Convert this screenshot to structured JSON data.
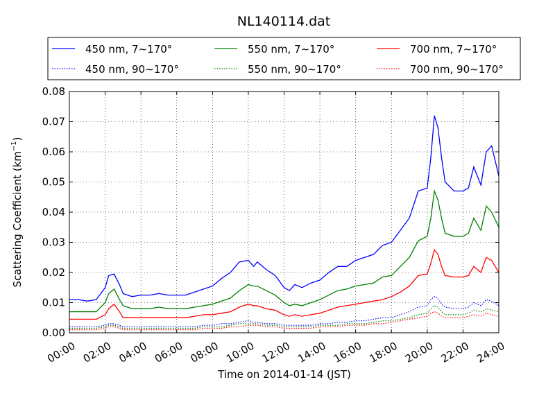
{
  "chart_data": {
    "type": "line",
    "title": "NL140114.dat",
    "xlabel": "Time on 2014-01-14 (JST)",
    "ylabel_main": "Scattering Coefficient (km",
    "ylabel_sup": "−1",
    "ylabel_tail": ")",
    "x_unit": "hours",
    "xlim": [
      0,
      24
    ],
    "ylim": [
      0,
      0.08
    ],
    "x_ticks": [
      0,
      2,
      4,
      6,
      8,
      10,
      12,
      14,
      16,
      18,
      20,
      22,
      24
    ],
    "x_tick_labels": [
      "00:00",
      "02:00",
      "04:00",
      "06:00",
      "08:00",
      "10:00",
      "12:00",
      "14:00",
      "16:00",
      "18:00",
      "20:00",
      "22:00",
      "24:00"
    ],
    "y_ticks": [
      0,
      0.01,
      0.02,
      0.03,
      0.04,
      0.05,
      0.06,
      0.07,
      0.08
    ],
    "y_tick_labels": [
      "0.00",
      "0.01",
      "0.02",
      "0.03",
      "0.04",
      "0.05",
      "0.06",
      "0.07",
      "0.08"
    ],
    "grid": true,
    "legend_position": "top, above plot",
    "x": [
      0,
      0.5,
      1,
      1.5,
      2,
      2.2,
      2.5,
      2.8,
      3,
      3.5,
      4,
      4.5,
      5,
      5.5,
      6,
      6.5,
      7,
      7.5,
      8,
      8.5,
      9,
      9.5,
      10,
      10.3,
      10.5,
      11,
      11.5,
      12,
      12.3,
      12.6,
      13,
      13.5,
      14,
      14.5,
      15,
      15.5,
      16,
      16.5,
      17,
      17.5,
      18,
      18.5,
      19,
      19.5,
      20,
      20.2,
      20.4,
      20.6,
      20.8,
      21,
      21.5,
      22,
      22.3,
      22.6,
      23,
      23.3,
      23.6,
      24
    ],
    "series": [
      {
        "name": "450 nm, 7∼170°",
        "color": "#0000ff",
        "style": "solid",
        "values": [
          0.011,
          0.011,
          0.0105,
          0.011,
          0.015,
          0.019,
          0.0195,
          0.016,
          0.013,
          0.012,
          0.0125,
          0.0125,
          0.013,
          0.0125,
          0.0125,
          0.0125,
          0.0135,
          0.0145,
          0.0155,
          0.018,
          0.02,
          0.0235,
          0.024,
          0.022,
          0.0235,
          0.021,
          0.019,
          0.015,
          0.014,
          0.016,
          0.015,
          0.0165,
          0.0175,
          0.02,
          0.022,
          0.022,
          0.024,
          0.025,
          0.026,
          0.029,
          0.03,
          0.034,
          0.038,
          0.047,
          0.048,
          0.058,
          0.072,
          0.068,
          0.058,
          0.05,
          0.047,
          0.047,
          0.048,
          0.055,
          0.049,
          0.06,
          0.062,
          0.052
        ]
      },
      {
        "name": "450 nm, 90∼170°",
        "color": "#0000ff",
        "style": "dotted",
        "values": [
          0.002,
          0.002,
          0.002,
          0.002,
          0.0025,
          0.003,
          0.003,
          0.0025,
          0.002,
          0.002,
          0.002,
          0.002,
          0.002,
          0.002,
          0.002,
          0.002,
          0.002,
          0.0025,
          0.0025,
          0.003,
          0.003,
          0.0035,
          0.004,
          0.0035,
          0.0035,
          0.003,
          0.003,
          0.0025,
          0.0025,
          0.0025,
          0.0025,
          0.0025,
          0.003,
          0.003,
          0.0035,
          0.0035,
          0.004,
          0.004,
          0.0045,
          0.005,
          0.005,
          0.006,
          0.007,
          0.0085,
          0.009,
          0.011,
          0.012,
          0.0115,
          0.0095,
          0.0085,
          0.008,
          0.008,
          0.0085,
          0.01,
          0.009,
          0.011,
          0.0105,
          0.009
        ]
      },
      {
        "name": "550 nm, 7∼170°",
        "color": "#008000",
        "style": "solid",
        "values": [
          0.007,
          0.007,
          0.007,
          0.007,
          0.01,
          0.013,
          0.0145,
          0.011,
          0.009,
          0.008,
          0.008,
          0.008,
          0.0085,
          0.008,
          0.008,
          0.008,
          0.0085,
          0.009,
          0.0095,
          0.0105,
          0.0115,
          0.014,
          0.016,
          0.0155,
          0.0155,
          0.014,
          0.0125,
          0.01,
          0.009,
          0.0095,
          0.009,
          0.01,
          0.011,
          0.0125,
          0.014,
          0.0145,
          0.0155,
          0.016,
          0.0165,
          0.0185,
          0.019,
          0.022,
          0.025,
          0.0305,
          0.032,
          0.038,
          0.047,
          0.044,
          0.038,
          0.033,
          0.032,
          0.032,
          0.033,
          0.038,
          0.034,
          0.042,
          0.04,
          0.035
        ]
      },
      {
        "name": "550 nm, 90∼170°",
        "color": "#008000",
        "style": "dotted",
        "values": [
          0.0015,
          0.0015,
          0.0015,
          0.0015,
          0.002,
          0.0025,
          0.0025,
          0.002,
          0.0015,
          0.0015,
          0.0015,
          0.0015,
          0.0015,
          0.0015,
          0.0015,
          0.0015,
          0.0015,
          0.002,
          0.002,
          0.002,
          0.0025,
          0.003,
          0.003,
          0.003,
          0.003,
          0.0025,
          0.0025,
          0.002,
          0.002,
          0.002,
          0.002,
          0.002,
          0.0025,
          0.0025,
          0.0025,
          0.003,
          0.003,
          0.003,
          0.0035,
          0.004,
          0.004,
          0.0045,
          0.005,
          0.006,
          0.0065,
          0.008,
          0.009,
          0.0085,
          0.007,
          0.006,
          0.006,
          0.006,
          0.0065,
          0.0075,
          0.007,
          0.008,
          0.0075,
          0.007
        ]
      },
      {
        "name": "700 nm, 7∼170°",
        "color": "#ff0000",
        "style": "solid",
        "values": [
          0.0045,
          0.0045,
          0.0045,
          0.0045,
          0.006,
          0.008,
          0.0095,
          0.007,
          0.005,
          0.005,
          0.005,
          0.005,
          0.005,
          0.005,
          0.005,
          0.005,
          0.0055,
          0.006,
          0.006,
          0.0065,
          0.007,
          0.0085,
          0.0095,
          0.009,
          0.009,
          0.008,
          0.0075,
          0.006,
          0.0055,
          0.006,
          0.0055,
          0.006,
          0.0065,
          0.0075,
          0.0085,
          0.009,
          0.0095,
          0.01,
          0.0105,
          0.011,
          0.012,
          0.0135,
          0.0155,
          0.019,
          0.0195,
          0.023,
          0.0275,
          0.026,
          0.022,
          0.019,
          0.0185,
          0.0185,
          0.019,
          0.022,
          0.02,
          0.025,
          0.024,
          0.02
        ]
      },
      {
        "name": "700 nm, 90∼170°",
        "color": "#ff0000",
        "style": "dotted",
        "values": [
          0.001,
          0.001,
          0.001,
          0.001,
          0.0015,
          0.002,
          0.002,
          0.0015,
          0.001,
          0.001,
          0.001,
          0.001,
          0.001,
          0.001,
          0.001,
          0.001,
          0.001,
          0.0015,
          0.0015,
          0.0015,
          0.002,
          0.002,
          0.0025,
          0.0025,
          0.0025,
          0.002,
          0.002,
          0.0015,
          0.0015,
          0.0015,
          0.0015,
          0.0015,
          0.002,
          0.002,
          0.002,
          0.0025,
          0.0025,
          0.0025,
          0.003,
          0.003,
          0.0035,
          0.004,
          0.0045,
          0.005,
          0.0055,
          0.0065,
          0.007,
          0.0065,
          0.0055,
          0.005,
          0.005,
          0.005,
          0.0055,
          0.006,
          0.0055,
          0.0065,
          0.006,
          0.0055
        ]
      }
    ]
  }
}
